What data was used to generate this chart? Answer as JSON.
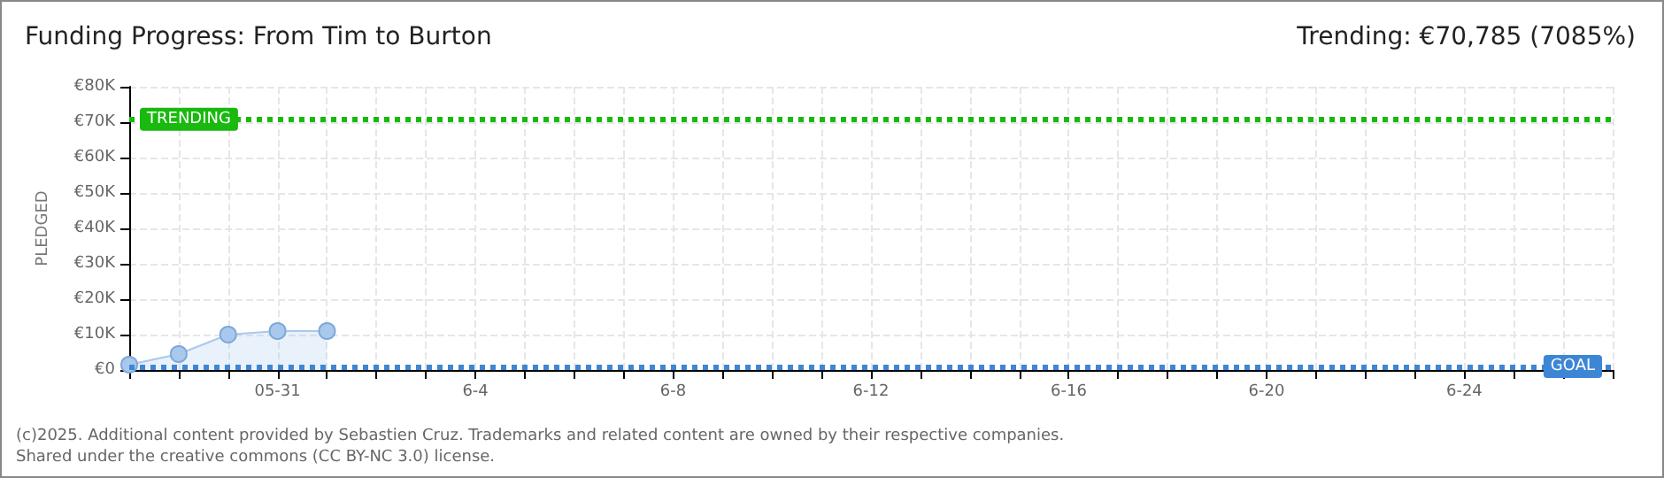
{
  "chart_data": {
    "type": "area",
    "title": "Funding Progress: From Tim to Burton",
    "subtitle": "Trending: €70,785 (7085%)",
    "ylabel": "PLEDGED",
    "categories": [
      null,
      null,
      null,
      "05-31",
      null,
      null,
      null,
      "6-4",
      null,
      null,
      null,
      "6-8",
      null,
      null,
      null,
      "6-12",
      null,
      null,
      null,
      "6-16",
      null,
      null,
      null,
      "6-20",
      null,
      null,
      null,
      "6-24",
      null,
      null,
      null
    ],
    "series": [
      {
        "color": "#a9c8ee",
        "values": [
          1500,
          4500,
          10000,
          11000,
          11000,
          null,
          null,
          null,
          null,
          null,
          null,
          null,
          null,
          null,
          null,
          null,
          null,
          null,
          null,
          null,
          null,
          null,
          null,
          null,
          null,
          null,
          null,
          null,
          null,
          null,
          null
        ]
      }
    ],
    "ylim": [
      0,
      80000
    ],
    "yticks": [
      {
        "value": 0,
        "label": "€0"
      },
      {
        "value": 10000,
        "label": "€10K"
      },
      {
        "value": 20000,
        "label": "€20K"
      },
      {
        "value": 30000,
        "label": "€30K"
      },
      {
        "value": 40000,
        "label": "€40K"
      },
      {
        "value": 50000,
        "label": "€50K"
      },
      {
        "value": 60000,
        "label": "€60K"
      },
      {
        "value": 70000,
        "label": "€70K"
      },
      {
        "value": 80000,
        "label": "€80K"
      }
    ],
    "ref_lines": [
      {
        "axis": "y",
        "value": 70785,
        "label": "TRENDING",
        "color": "#19b90f",
        "line_style": "dotted"
      },
      {
        "axis": "y",
        "value": 999,
        "label": "GOAL",
        "color": "#3d86d6",
        "line_style": "dotted"
      }
    ],
    "grid": true,
    "marker": "circle",
    "annotations": [
      "(c)2025. Additional content provided by Sebastien Cruz. Trademarks and related content are owned by their respective companies.",
      "Shared under the creative commons (CC BY-NC 3.0) license."
    ]
  }
}
